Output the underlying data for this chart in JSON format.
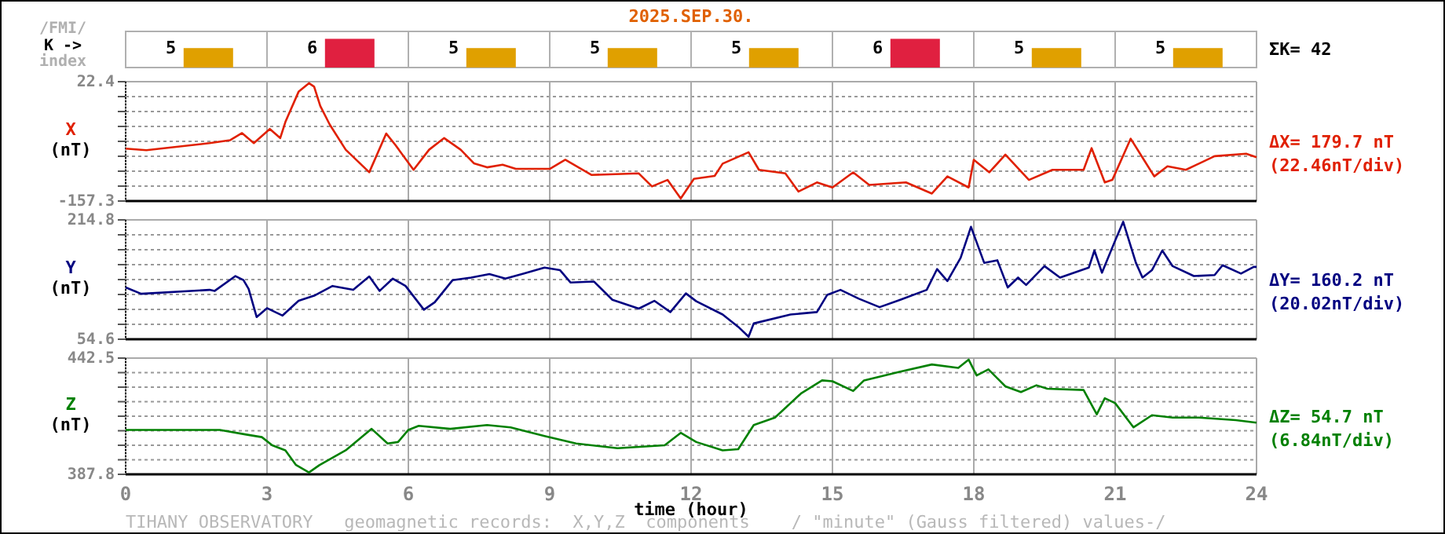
{
  "chart_data": [
    {
      "type": "bar",
      "title": "2025.SEP.30.",
      "ylabel": "K ->",
      "annotations": [
        "/FMI/",
        "index",
        "ΣK= 42"
      ],
      "categories": [
        null,
        null,
        null,
        null,
        null,
        null,
        null,
        null
      ],
      "values": [
        5,
        6,
        5,
        5,
        5,
        6,
        5,
        5
      ],
      "colors": [
        "#e0a000",
        "#e02040",
        "#e0a000",
        "#e0a000",
        "#e0a000",
        "#e02040",
        "#e0a000",
        "#e0a000"
      ],
      "ylim": [
        2.9,
        6.8
      ],
      "tick_labels": false,
      "data_labels": true
    },
    {
      "type": "line",
      "ylabel": "X\n(nT)",
      "annotations": [
        "ΔX= 179.7 nT",
        "(22.46nT/div)"
      ],
      "xlim": [
        0,
        24
      ],
      "xticks": [
        0,
        3,
        6,
        9,
        12,
        15,
        18,
        21,
        24
      ],
      "ylim": [
        -157.3,
        22.4
      ],
      "yticks": [
        -157.3,
        {
          "value": -134.84,
          "label": null
        },
        {
          "value": -112.37,
          "label": null
        },
        {
          "value": -89.91,
          "label": null
        },
        {
          "value": -67.45,
          "label": null
        },
        {
          "value": -44.99,
          "label": null
        },
        {
          "value": -22.52,
          "label": null
        },
        {
          "value": -0.06,
          "label": null
        },
        22.4
      ],
      "grid": true,
      "tick_labels": "y",
      "series": [
        {
          "color": "#e02000",
          "x": [
            0,
            0.44,
            1.78,
            2.22,
            2.47,
            2.72,
            3.06,
            3.28,
            3.39,
            3.67,
            3.89,
            4.0,
            4.13,
            4.33,
            4.67,
            5.17,
            5.53,
            5.72,
            6.11,
            6.44,
            6.76,
            7.11,
            7.39,
            7.67,
            8.0,
            8.28,
            9.0,
            9.33,
            9.89,
            10.89,
            11.17,
            11.5,
            11.78,
            12.06,
            12.5,
            12.67,
            13.22,
            13.44,
            14.0,
            14.28,
            14.67,
            15.0,
            15.44,
            15.78,
            16.56,
            17.11,
            17.44,
            17.89,
            18.0,
            18.33,
            18.67,
            19.17,
            19.67,
            20.33,
            20.5,
            20.78,
            20.94,
            21.33,
            21.61,
            21.83,
            22.11,
            22.5,
            23.11,
            23.78,
            24.0
          ],
          "values": [
            -78.4,
            -80.7,
            -70.2,
            -65.6,
            -55,
            -70,
            -48.8,
            -62.5,
            -38.3,
            7.2,
            20.1,
            14.9,
            -14,
            -42,
            -80,
            -114,
            -55.7,
            -72.5,
            -110.3,
            -80,
            -62.5,
            -80,
            -100.5,
            -106.6,
            -102.7,
            -108.9,
            -108.9,
            -95.2,
            -118,
            -115.7,
            -135.3,
            -125.5,
            -153.5,
            -123.9,
            -119.4,
            -101,
            -83.8,
            -110.3,
            -115.7,
            -143,
            -129.3,
            -136.9,
            -114.1,
            -133,
            -129.3,
            -146,
            -120.2,
            -136.9,
            -95.2,
            -114.1,
            -87.5,
            -125.5,
            -110.3,
            -110.3,
            -77.7,
            -129.3,
            -125.5,
            -63.4,
            -95.2,
            -120.2,
            -105,
            -110.3,
            -89.8,
            -86.1,
            -91.4
          ]
        }
      ]
    },
    {
      "type": "line",
      "ylabel": "Y\n(nT)",
      "annotations": [
        "ΔY= 160.2 nT",
        "(20.02nT/div)"
      ],
      "xlim": [
        0,
        24
      ],
      "xticks": [
        0,
        3,
        6,
        9,
        12,
        15,
        18,
        21,
        24
      ],
      "ylim": [
        54.6,
        214.8
      ],
      "yticks": [
        54.6,
        {
          "value": 74.63,
          "label": null
        },
        {
          "value": 94.65,
          "label": null
        },
        {
          "value": 114.68,
          "label": null
        },
        {
          "value": 134.7,
          "label": null
        },
        {
          "value": 154.73,
          "label": null
        },
        {
          "value": 174.75,
          "label": null
        },
        {
          "value": 194.78,
          "label": null
        },
        214.8
      ],
      "grid": true,
      "tick_labels": "y",
      "series": [
        {
          "color": "#000080",
          "x": [
            0,
            0.33,
            1.78,
            1.89,
            2.33,
            2.5,
            2.61,
            2.78,
            3.0,
            3.33,
            3.67,
            4.0,
            4.39,
            4.83,
            5.17,
            5.39,
            5.67,
            5.94,
            6.33,
            6.56,
            6.94,
            7.33,
            7.72,
            8.06,
            8.44,
            8.89,
            9.22,
            9.44,
            9.94,
            10.33,
            10.89,
            11.22,
            11.56,
            11.89,
            12.11,
            12.67,
            13.0,
            13.22,
            13.33,
            14.11,
            14.67,
            14.89,
            15.17,
            15.56,
            16.0,
            16.44,
            17.0,
            17.22,
            17.44,
            17.72,
            17.94,
            18.22,
            18.5,
            18.72,
            18.94,
            19.11,
            19.5,
            19.83,
            20.44,
            20.56,
            20.72,
            21.0,
            21.17,
            21.44,
            21.58,
            21.78,
            22.0,
            22.22,
            22.67,
            23.11,
            23.28,
            23.67,
            23.94,
            24.0
          ],
          "values": [
            124.1,
            115.6,
            120.9,
            119.5,
            139.4,
            134.0,
            122.1,
            84.4,
            96.3,
            86.4,
            106.2,
            113.0,
            126.1,
            120.9,
            138.8,
            119.5,
            136.0,
            126.1,
            94.3,
            104.2,
            134.0,
            137.4,
            142.0,
            136.0,
            142.7,
            150.7,
            147.3,
            130.8,
            132.0,
            107.6,
            95.7,
            106.2,
            91.1,
            116.1,
            105.6,
            87.8,
            71.3,
            58.0,
            75.8,
            87.8,
            91.1,
            114.2,
            120.9,
            109.0,
            97.7,
            107.6,
            120.9,
            148.7,
            132.8,
            163.8,
            205.5,
            157.2,
            160.6,
            124.1,
            137.4,
            127.5,
            152.7,
            137.4,
            150.7,
            173.7,
            143.9,
            187.0,
            212.2,
            157.2,
            137.4,
            147.3,
            173.7,
            152.7,
            139.4,
            140.8,
            153.9,
            142.7,
            151.7,
            151.7
          ]
        }
      ]
    },
    {
      "type": "line",
      "ylabel": "Z\n(nT)",
      "xlabel": "time (hour)",
      "annotations": [
        "ΔZ= 54.7 nT",
        "(6.84nT/div)",
        "TIHANY OBSERVATORY   geomagnetic records:  X,Y,Z  components    / \"minute\" (Gauss filtered) values-/"
      ],
      "xlim": [
        0,
        24
      ],
      "xticks": [
        0,
        3,
        6,
        9,
        12,
        15,
        18,
        21,
        24
      ],
      "ylim": [
        387.8,
        442.5
      ],
      "yticks": [
        387.8,
        {
          "value": 394.64,
          "label": null
        },
        {
          "value": 401.48,
          "label": null
        },
        {
          "value": 408.31,
          "label": null
        },
        {
          "value": 415.15,
          "label": null
        },
        {
          "value": 421.99,
          "label": null
        },
        {
          "value": 428.83,
          "label": null
        },
        {
          "value": 435.66,
          "label": null
        },
        442.5
      ],
      "grid": true,
      "series": [
        {
          "color": "#008000",
          "x": [
            0,
            0.44,
            2.0,
            2.56,
            2.89,
            3.11,
            3.39,
            3.61,
            3.89,
            4.11,
            4.67,
            5.22,
            5.56,
            5.78,
            6.0,
            6.22,
            6.89,
            7.67,
            8.17,
            8.89,
            9.56,
            10.44,
            11.44,
            11.78,
            12.11,
            12.67,
            13.0,
            13.33,
            13.78,
            14.33,
            14.78,
            15.0,
            15.44,
            15.67,
            16.44,
            17.11,
            17.67,
            17.89,
            18.06,
            18.31,
            18.67,
            19.0,
            19.33,
            19.56,
            20.33,
            20.61,
            20.78,
            21.0,
            21.39,
            21.78,
            22.22,
            22.78,
            23.56,
            24.0
          ],
          "values": [
            408.7,
            408.7,
            408.7,
            406.5,
            405.3,
            401.5,
            399.1,
            392.3,
            388.7,
            392.1,
            399.1,
            409.2,
            402.3,
            403.0,
            408.7,
            410.6,
            409.2,
            411.0,
            409.9,
            405.8,
            402.3,
            400.1,
            401.5,
            407.3,
            403.0,
            399.1,
            399.6,
            411.0,
            414.5,
            425.8,
            432.0,
            431.6,
            427.0,
            432.0,
            436.1,
            439.5,
            437.9,
            441.8,
            434.3,
            437.2,
            429.2,
            426.5,
            429.7,
            428.1,
            427.5,
            416.0,
            423.6,
            421.3,
            409.9,
            415.6,
            414.5,
            414.5,
            413.3,
            412.1
          ]
        }
      ]
    }
  ]
}
